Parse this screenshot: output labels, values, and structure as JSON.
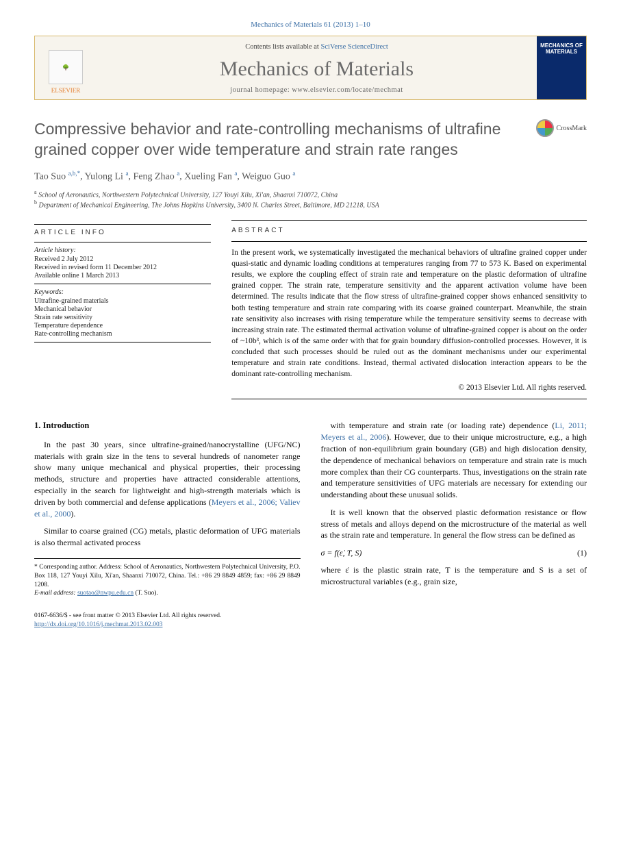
{
  "pageref": "Mechanics of Materials 61 (2013) 1–10",
  "header": {
    "contents_prefix": "Contents lists available at ",
    "contents_link": "SciVerse ScienceDirect",
    "journal_name": "Mechanics of Materials",
    "homepage_label": "journal homepage: www.elsevier.com/locate/mechmat",
    "publisher": "ELSEVIER",
    "cover_title": "MECHANICS OF MATERIALS"
  },
  "crossmark": "CrossMark",
  "title": "Compressive behavior and rate-controlling mechanisms of ultrafine grained copper over wide temperature and strain rate ranges",
  "authors_html": "Tao Suo <sup class=\"aff-sup\">a,b,</sup><sup>*</sup>, Yulong Li <sup class=\"aff-sup\">a</sup>, Feng Zhao <sup class=\"aff-sup\">a</sup>, Xueling Fan <sup class=\"aff-sup\">a</sup>, Weiguo Guo <sup class=\"aff-sup\">a</sup>",
  "affiliations": [
    "a School of Aeronautics, Northwestern Polytechnical University, 127 Youyi Xilu, Xi'an, Shaanxi 710072, China",
    "b Department of Mechanical Engineering, The Johns Hopkins University, 3400 N. Charles Street, Baltimore, MD 21218, USA"
  ],
  "article_info_label": "article info",
  "abstract_label": "abstract",
  "history_label": "Article history:",
  "history": [
    "Received 2 July 2012",
    "Received in revised form 11 December 2012",
    "Available online 1 March 2013"
  ],
  "keywords_label": "Keywords:",
  "keywords": [
    "Ultrafine-grained materials",
    "Mechanical behavior",
    "Strain rate sensitivity",
    "Temperature dependence",
    "Rate-controlling mechanism"
  ],
  "abstract": "In the present work, we systematically investigated the mechanical behaviors of ultrafine grained copper under quasi-static and dynamic loading conditions at temperatures ranging from 77 to 573 K. Based on experimental results, we explore the coupling effect of strain rate and temperature on the plastic deformation of ultrafine grained copper. The strain rate, temperature sensitivity and the apparent activation volume have been determined. The results indicate that the flow stress of ultrafine-grained copper shows enhanced sensitivity to both testing temperature and strain rate comparing with its coarse grained counterpart. Meanwhile, the strain rate sensitivity also increases with rising temperature while the temperature sensitivity seems to decrease with increasing strain rate. The estimated thermal activation volume of ultrafine-grained copper is about on the order of ~10b³, which is of the same order with that for grain boundary diffusion-controlled processes. However, it is concluded that such processes should be ruled out as the dominant mechanisms under our experimental temperature and strain rate conditions. Instead, thermal activated dislocation interaction appears to be the dominant rate-controlling mechanism.",
  "abstract_copyright": "© 2013 Elsevier Ltd. All rights reserved.",
  "section1_heading": "1. Introduction",
  "col1_p1": "In the past 30 years, since ultrafine-grained/nanocrystalline (UFG/NC) materials with grain size in the tens to several hundreds of nanometer range show many unique mechanical and physical properties, their processing methods, structure and properties have attracted considerable attentions, especially in the search for lightweight and high-strength materials which is driven by both commercial and defense applications (",
  "col1_ref1": "Meyers et al., 2006; Valiev et al., 2000",
  "col1_p1_tail": ").",
  "col1_p2a": "Similar to coarse grained (CG) metals, plastic deformation of UFG materials is also thermal activated process",
  "col2_p1a": "with temperature and strain rate (or loading rate) dependence (",
  "col2_ref1": "Li, 2011; Meyers et al., 2006",
  "col2_p1b": "). However, due to their unique microstructure, e.g., a high fraction of non-equilibrium grain boundary (GB) and high dislocation density, the dependence of mechanical behaviors on temperature and strain rate is much more complex than their CG counterparts. Thus, investigations on the strain rate and temperature sensitivities of UFG materials are necessary for extending our understanding about these unusual solids.",
  "col2_p2": "It is well known that the observed plastic deformation resistance or flow stress of metals and alloys depend on the microstructure of the material as well as the strain rate and temperature. In general the flow stress can be defined as",
  "equation": "σ = f(ε̇, T, S)",
  "equation_num": "(1)",
  "col2_p3": "where ε̇ is the plastic strain rate, T is the temperature and S is a set of microstructural variables (e.g., grain size,",
  "corr_author": "* Corresponding author. Address: School of Aeronautics, Northwestern Polytechnical University, P.O. Box 118, 127 Youyi Xilu, Xi'an, Shaanxi 710072, China. Tel.: +86 29 8849 4859; fax: +86 29 8849 1208.",
  "email_label": "E-mail address:",
  "email": "suotao@nwpu.edu.cn",
  "email_tail": " (T. Suo).",
  "issn_line": "0167-6636/$ - see front matter © 2013 Elsevier Ltd. All rights reserved.",
  "doi": "http://dx.doi.org/10.1016/j.mechmat.2013.02.003",
  "colors": {
    "link": "#3a6ea5",
    "title": "#5c5c5c",
    "header_border": "#d8b86a",
    "header_bg": "#f7f4ed",
    "cover_bg": "#0a2a6b",
    "publisher": "#e47d2e"
  }
}
